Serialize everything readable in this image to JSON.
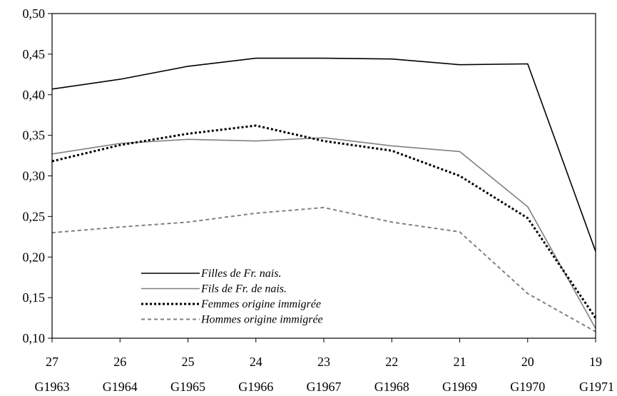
{
  "chart_data": {
    "type": "line",
    "categories": [
      {
        "age": "27",
        "cohort": "G1963"
      },
      {
        "age": "26",
        "cohort": "G1964"
      },
      {
        "age": "25",
        "cohort": "G1965"
      },
      {
        "age": "24",
        "cohort": "G1966"
      },
      {
        "age": "23",
        "cohort": "G1967"
      },
      {
        "age": "22",
        "cohort": "G1968"
      },
      {
        "age": "21",
        "cohort": "G1969"
      },
      {
        "age": "20",
        "cohort": "G1970"
      },
      {
        "age": "19",
        "cohort": "G1971"
      }
    ],
    "ylim": [
      0.1,
      0.5
    ],
    "yticks": [
      "0,10",
      "0,15",
      "0,20",
      "0,25",
      "0,30",
      "0,35",
      "0,40",
      "0,45",
      "0,50"
    ],
    "title": "",
    "xlabel": "",
    "ylabel": "",
    "grid": false,
    "legend_position": "bottom-left",
    "series": [
      {
        "name": "Filles de Fr. nais.",
        "color": "#000000",
        "dash": "solid",
        "values": [
          0.407,
          0.419,
          0.435,
          0.445,
          0.445,
          0.444,
          0.437,
          0.438,
          0.207
        ]
      },
      {
        "name": "Fils de Fr. de nais.",
        "color": "#808080",
        "dash": "solid",
        "values": [
          0.327,
          0.34,
          0.345,
          0.343,
          0.347,
          0.337,
          0.33,
          0.262,
          0.112
        ]
      },
      {
        "name": "Femmes origine immigrée",
        "color": "#000000",
        "dash": "dotted",
        "values": [
          0.318,
          0.338,
          0.352,
          0.362,
          0.343,
          0.331,
          0.3,
          0.248,
          0.125
        ]
      },
      {
        "name": "Hommes origine immigrée",
        "color": "#808080",
        "dash": "dashed",
        "values": [
          0.23,
          0.237,
          0.243,
          0.254,
          0.261,
          0.243,
          0.231,
          0.155,
          0.108
        ]
      }
    ]
  }
}
